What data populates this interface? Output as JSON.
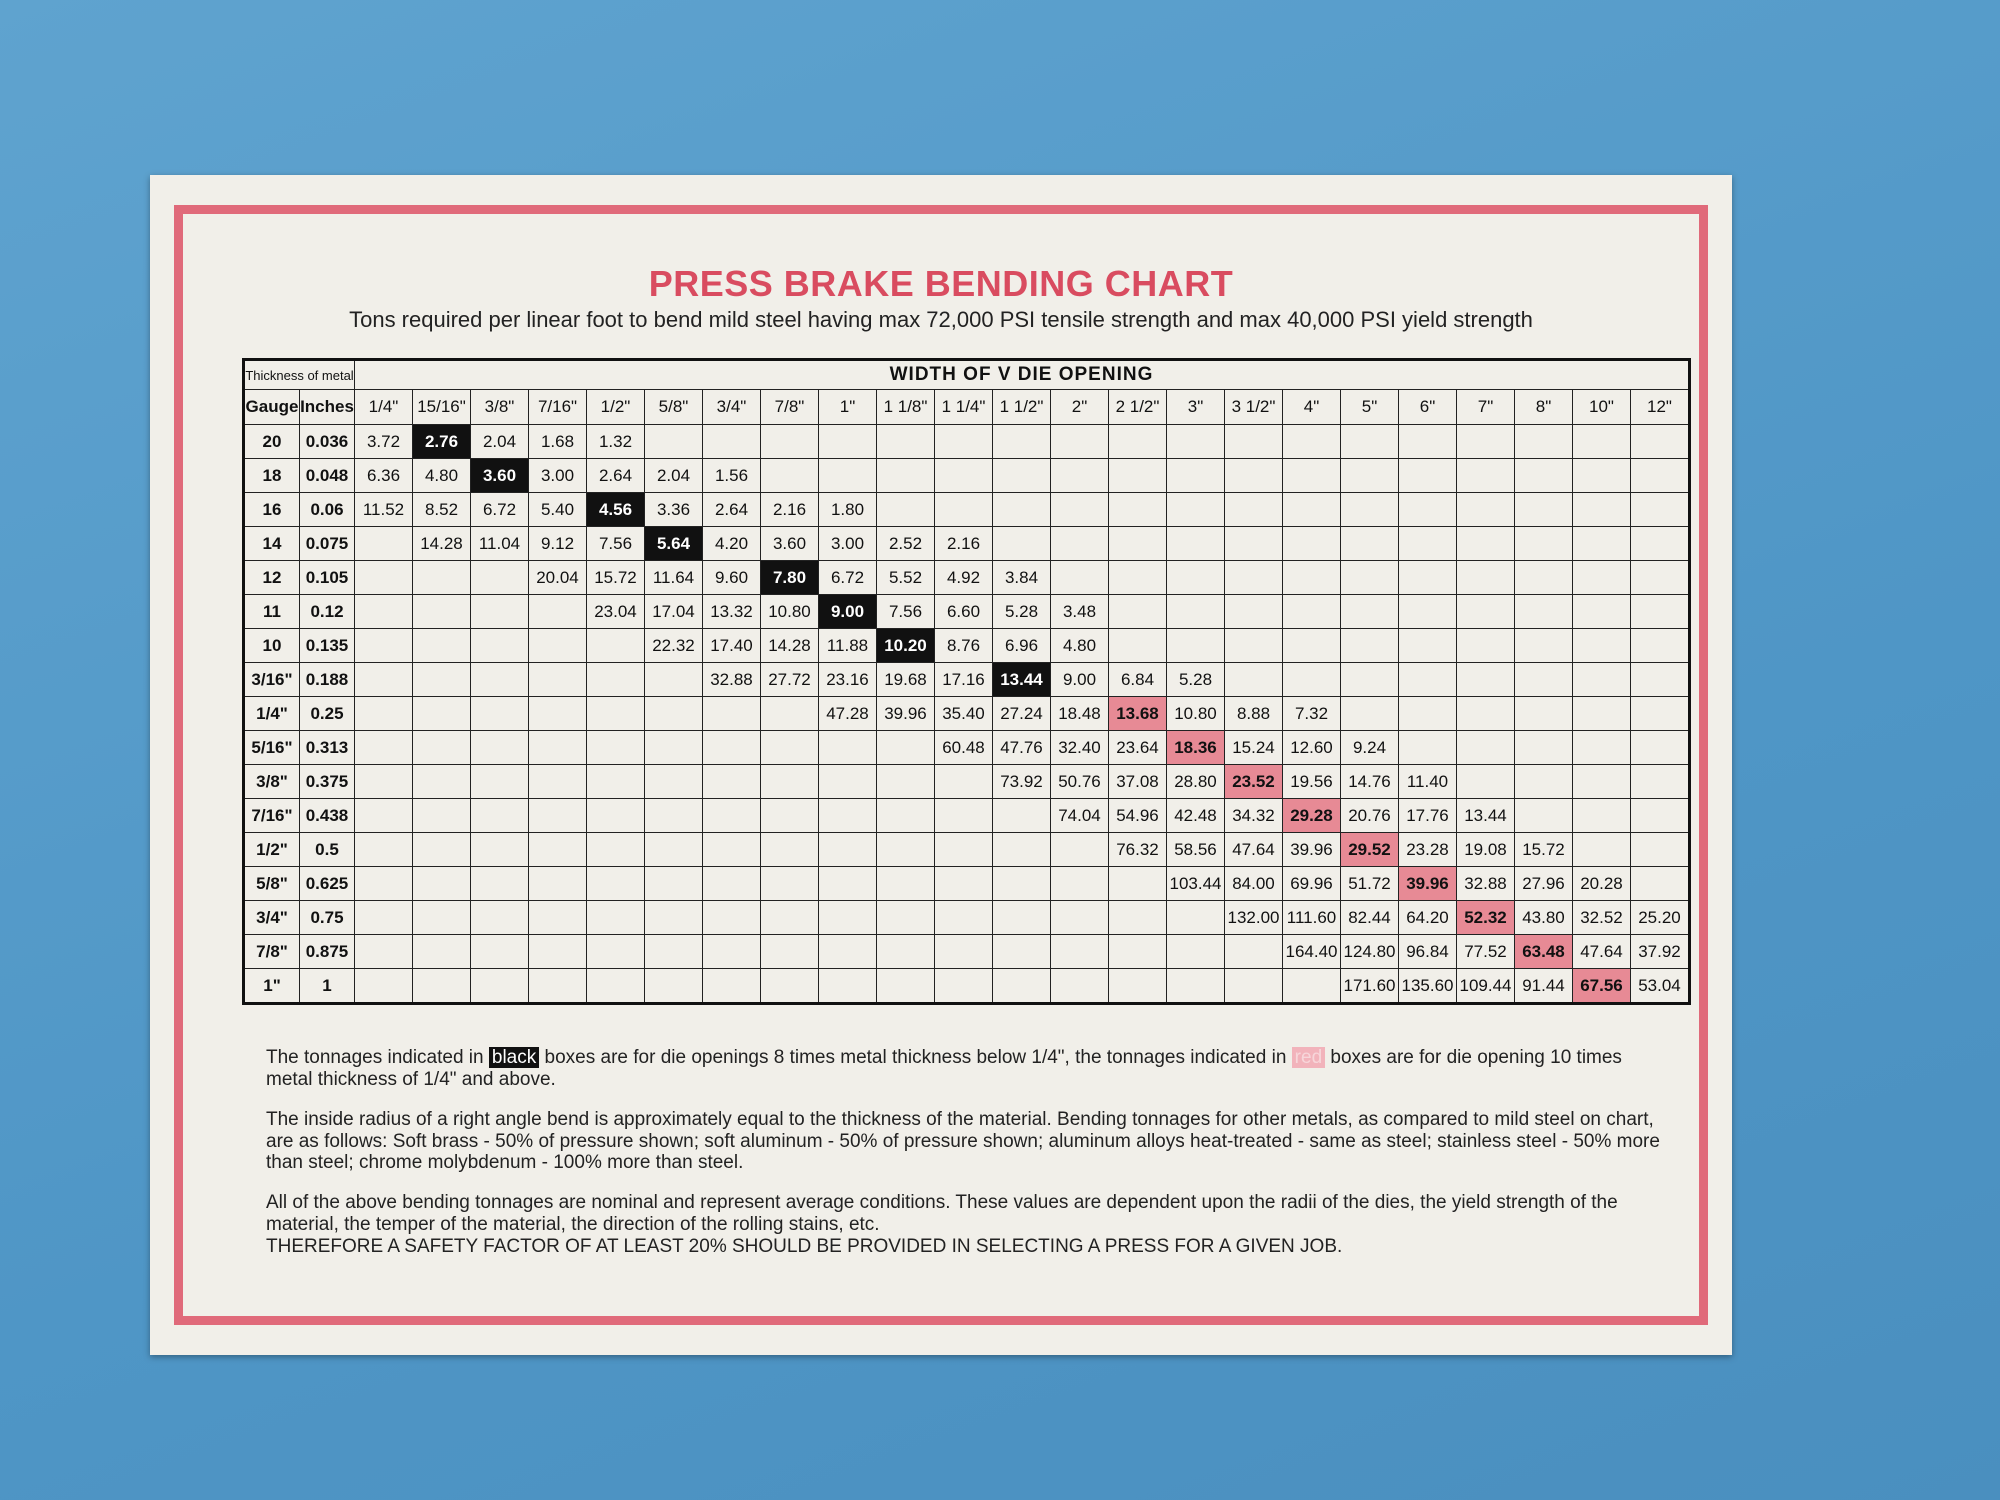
{
  "title": "PRESS BRAKE BENDING CHART",
  "subtitle": "Tons required per linear foot to bend mild steel having max 72,000 PSI tensile strength and max 40,000 PSI yield strength",
  "table": {
    "thickness_header": "Thickness of metal",
    "die_header": "WIDTH OF V DIE OPENING",
    "gauge_header": "Gauge",
    "inches_header": "Inches",
    "columns": [
      "1/4\"",
      "15/16\"",
      "3/8\"",
      "7/16\"",
      "1/2\"",
      "5/8\"",
      "3/4\"",
      "7/8\"",
      "1\"",
      "1 1/8\"",
      "1 1/4\"",
      "1 1/2\"",
      "2\"",
      "2 1/2\"",
      "3\"",
      "3 1/2\"",
      "4\"",
      "5\"",
      "6\"",
      "7\"",
      "8\"",
      "10\"",
      "12\""
    ],
    "rows": [
      {
        "gauge": "20",
        "inches": "0.036",
        "highlight": "black",
        "highlight_col": 1,
        "cells": [
          "3.72",
          "2.76",
          "2.04",
          "1.68",
          "1.32",
          null,
          null,
          null,
          null,
          null,
          null,
          null,
          null,
          null,
          null,
          null,
          null,
          null,
          null,
          null,
          null,
          null,
          null
        ]
      },
      {
        "gauge": "18",
        "inches": "0.048",
        "highlight": "black",
        "highlight_col": 2,
        "cells": [
          "6.36",
          "4.80",
          "3.60",
          "3.00",
          "2.64",
          "2.04",
          "1.56",
          null,
          null,
          null,
          null,
          null,
          null,
          null,
          null,
          null,
          null,
          null,
          null,
          null,
          null,
          null,
          null
        ]
      },
      {
        "gauge": "16",
        "inches": "0.06",
        "highlight": "black",
        "highlight_col": 4,
        "cells": [
          "11.52",
          "8.52",
          "6.72",
          "5.40",
          "4.56",
          "3.36",
          "2.64",
          "2.16",
          "1.80",
          null,
          null,
          null,
          null,
          null,
          null,
          null,
          null,
          null,
          null,
          null,
          null,
          null,
          null
        ]
      },
      {
        "gauge": "14",
        "inches": "0.075",
        "highlight": "black",
        "highlight_col": 5,
        "cells": [
          null,
          "14.28",
          "11.04",
          "9.12",
          "7.56",
          "5.64",
          "4.20",
          "3.60",
          "3.00",
          "2.52",
          "2.16",
          null,
          null,
          null,
          null,
          null,
          null,
          null,
          null,
          null,
          null,
          null,
          null
        ]
      },
      {
        "gauge": "12",
        "inches": "0.105",
        "highlight": "black",
        "highlight_col": 7,
        "cells": [
          null,
          null,
          null,
          "20.04",
          "15.72",
          "11.64",
          "9.60",
          "7.80",
          "6.72",
          "5.52",
          "4.92",
          "3.84",
          null,
          null,
          null,
          null,
          null,
          null,
          null,
          null,
          null,
          null,
          null
        ]
      },
      {
        "gauge": "11",
        "inches": "0.12",
        "highlight": "black",
        "highlight_col": 8,
        "cells": [
          null,
          null,
          null,
          null,
          "23.04",
          "17.04",
          "13.32",
          "10.80",
          "9.00",
          "7.56",
          "6.60",
          "5.28",
          "3.48",
          null,
          null,
          null,
          null,
          null,
          null,
          null,
          null,
          null,
          null
        ]
      },
      {
        "gauge": "10",
        "inches": "0.135",
        "highlight": "black",
        "highlight_col": 9,
        "cells": [
          null,
          null,
          null,
          null,
          null,
          "22.32",
          "17.40",
          "14.28",
          "11.88",
          "10.20",
          "8.76",
          "6.96",
          "4.80",
          null,
          null,
          null,
          null,
          null,
          null,
          null,
          null,
          null,
          null
        ]
      },
      {
        "gauge": "3/16\"",
        "inches": "0.188",
        "highlight": "black",
        "highlight_col": 11,
        "cells": [
          null,
          null,
          null,
          null,
          null,
          null,
          "32.88",
          "27.72",
          "23.16",
          "19.68",
          "17.16",
          "13.44",
          "9.00",
          "6.84",
          "5.28",
          null,
          null,
          null,
          null,
          null,
          null,
          null,
          null
        ]
      },
      {
        "gauge": "1/4\"",
        "inches": "0.25",
        "highlight": "red",
        "highlight_col": 13,
        "cells": [
          null,
          null,
          null,
          null,
          null,
          null,
          null,
          null,
          "47.28",
          "39.96",
          "35.40",
          "27.24",
          "18.48",
          "13.68",
          "10.80",
          "8.88",
          "7.32",
          null,
          null,
          null,
          null,
          null,
          null
        ]
      },
      {
        "gauge": "5/16\"",
        "inches": "0.313",
        "highlight": "red",
        "highlight_col": 14,
        "cells": [
          null,
          null,
          null,
          null,
          null,
          null,
          null,
          null,
          null,
          null,
          "60.48",
          "47.76",
          "32.40",
          "23.64",
          "18.36",
          "15.24",
          "12.60",
          "9.24",
          null,
          null,
          null,
          null,
          null
        ]
      },
      {
        "gauge": "3/8\"",
        "inches": "0.375",
        "highlight": "red",
        "highlight_col": 15,
        "cells": [
          null,
          null,
          null,
          null,
          null,
          null,
          null,
          null,
          null,
          null,
          null,
          "73.92",
          "50.76",
          "37.08",
          "28.80",
          "23.52",
          "19.56",
          "14.76",
          "11.40",
          null,
          null,
          null,
          null
        ]
      },
      {
        "gauge": "7/16\"",
        "inches": "0.438",
        "highlight": "red",
        "highlight_col": 16,
        "cells": [
          null,
          null,
          null,
          null,
          null,
          null,
          null,
          null,
          null,
          null,
          null,
          null,
          "74.04",
          "54.96",
          "42.48",
          "34.32",
          "29.28",
          "20.76",
          "17.76",
          "13.44",
          null,
          null,
          null
        ]
      },
      {
        "gauge": "1/2\"",
        "inches": "0.5",
        "highlight": "red",
        "highlight_col": 17,
        "cells": [
          null,
          null,
          null,
          null,
          null,
          null,
          null,
          null,
          null,
          null,
          null,
          null,
          null,
          "76.32",
          "58.56",
          "47.64",
          "39.96",
          "29.52",
          "23.28",
          "19.08",
          "15.72",
          null,
          null
        ]
      },
      {
        "gauge": "5/8\"",
        "inches": "0.625",
        "highlight": "red",
        "highlight_col": 18,
        "cells": [
          null,
          null,
          null,
          null,
          null,
          null,
          null,
          null,
          null,
          null,
          null,
          null,
          null,
          null,
          "103.44",
          "84.00",
          "69.96",
          "51.72",
          "39.96",
          "32.88",
          "27.96",
          "20.28",
          null
        ]
      },
      {
        "gauge": "3/4\"",
        "inches": "0.75",
        "highlight": "red",
        "highlight_col": 19,
        "cells": [
          null,
          null,
          null,
          null,
          null,
          null,
          null,
          null,
          null,
          null,
          null,
          null,
          null,
          null,
          null,
          "132.00",
          "111.60",
          "82.44",
          "64.20",
          "52.32",
          "43.80",
          "32.52",
          "25.20"
        ]
      },
      {
        "gauge": "7/8\"",
        "inches": "0.875",
        "highlight": "red",
        "highlight_col": 20,
        "cells": [
          null,
          null,
          null,
          null,
          null,
          null,
          null,
          null,
          null,
          null,
          null,
          null,
          null,
          null,
          null,
          null,
          "164.40",
          "124.80",
          "96.84",
          "77.52",
          "63.48",
          "47.64",
          "37.92"
        ]
      },
      {
        "gauge": "1\"",
        "inches": "1",
        "highlight": "red",
        "highlight_col": 21,
        "cells": [
          null,
          null,
          null,
          null,
          null,
          null,
          null,
          null,
          null,
          null,
          null,
          null,
          null,
          null,
          null,
          null,
          null,
          "171.60",
          "135.60",
          "109.44",
          "91.44",
          "67.56",
          "53.04"
        ]
      }
    ]
  },
  "notes": {
    "note1": [
      "The tonnages indicated in",
      "black",
      "boxes are for die openings 8 times metal thickness below 1/4\", the tonnages indicated in",
      "red",
      "boxes are for die opening 10 times metal thickness of 1/4\" and above."
    ],
    "note2": "The inside radius of a right angle bend is approximately equal to the thickness of the material.  Bending tonnages for other metals, as compared to mild steel on chart, are as follows: Soft brass - 50% of pressure shown; soft aluminum - 50% of pressure shown; aluminum alloys heat-treated - same as steel; stainless steel - 50% more than steel; chrome molybdenum - 100% more than steel.",
    "note3": "All of the above bending tonnages are nominal and represent average conditions. These values are dependent upon the radii of the dies, the yield strength of the material, the temper of the material, the direction of the rolling stains, etc.",
    "warning": "THEREFORE A SAFETY FACTOR OF AT LEAST 20% SHOULD BE PROVIDED IN SELECTING A PRESS FOR A GIVEN JOB."
  }
}
